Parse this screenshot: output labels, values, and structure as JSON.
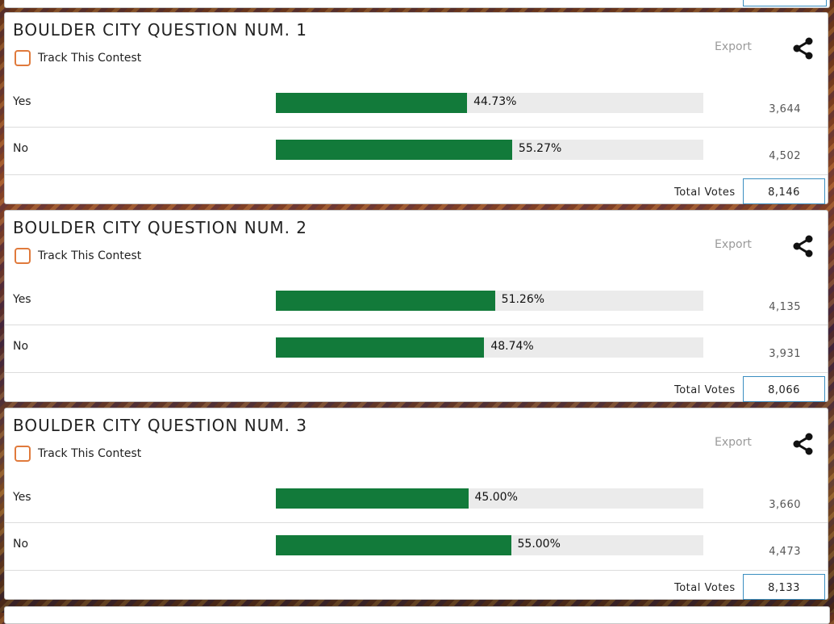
{
  "contests": [
    {
      "title": "BOULDER CITY QUESTION NUM. 1",
      "track_label": "Track This Contest",
      "export_label": "Export",
      "share_icon": "share-icon",
      "choices": [
        {
          "label": "Yes",
          "percent_text": "44.73%",
          "percent": 44.73,
          "votes": "3,644"
        },
        {
          "label": "No",
          "percent_text": "55.27%",
          "percent": 55.27,
          "votes": "4,502"
        }
      ],
      "total_label": "Total Votes",
      "total_votes": "8,146"
    },
    {
      "title": "BOULDER CITY QUESTION NUM. 2",
      "track_label": "Track This Contest",
      "export_label": "Export",
      "share_icon": "share-icon",
      "choices": [
        {
          "label": "Yes",
          "percent_text": "51.26%",
          "percent": 51.26,
          "votes": "4,135"
        },
        {
          "label": "No",
          "percent_text": "48.74%",
          "percent": 48.74,
          "votes": "3,931"
        }
      ],
      "total_label": "Total Votes",
      "total_votes": "8,066"
    },
    {
      "title": "BOULDER CITY QUESTION NUM. 3",
      "track_label": "Track This Contest",
      "export_label": "Export",
      "share_icon": "share-icon",
      "choices": [
        {
          "label": "Yes",
          "percent_text": "45.00%",
          "percent": 45.0,
          "votes": "3,660"
        },
        {
          "label": "No",
          "percent_text": "55.00%",
          "percent": 55.0,
          "votes": "4,473"
        }
      ],
      "total_label": "Total Votes",
      "total_votes": "8,133"
    }
  ],
  "colors": {
    "bar_fill": "#127a3a",
    "bar_track": "#ebebeb",
    "checkbox_border": "#e07a3c",
    "total_box_border": "#3a8ec0"
  }
}
